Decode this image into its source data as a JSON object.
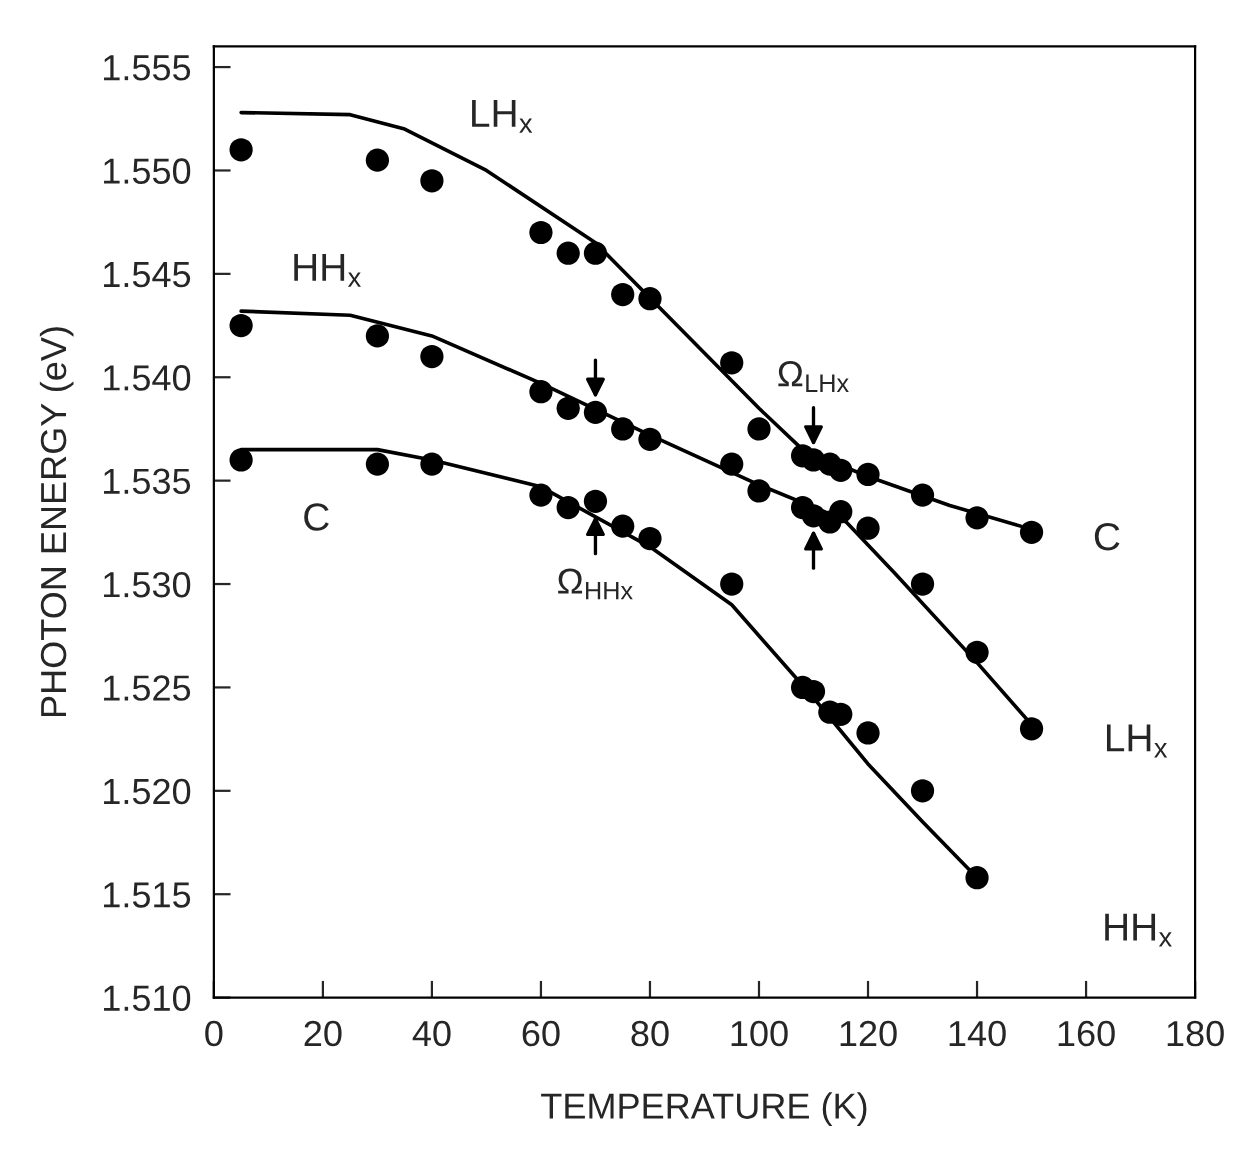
{
  "chart_data": {
    "type": "scatter",
    "xlabel": "TEMPERATURE (K)",
    "ylabel": "PHOTON ENERGY (eV)",
    "xlim": [
      0,
      180
    ],
    "xticks": [
      0,
      20,
      40,
      60,
      80,
      100,
      120,
      140,
      160,
      180
    ],
    "ylim": [
      1.51,
      1.556
    ],
    "yticks": [
      {
        "value": 1.51,
        "label": "1.510"
      },
      {
        "value": 1.515,
        "label": "1.515"
      },
      {
        "value": 1.52,
        "label": "1.520"
      },
      {
        "value": 1.525,
        "label": "1.525"
      },
      {
        "value": 1.53,
        "label": "1.530"
      },
      {
        "value": 1.535,
        "label": "1.535"
      },
      {
        "value": 1.54,
        "label": "1.540"
      },
      {
        "value": 1.545,
        "label": "1.545"
      },
      {
        "value": 1.55,
        "label": "1.550"
      },
      {
        "value": 1.555,
        "label": "1.555"
      }
    ],
    "grid": false,
    "legend": false,
    "series": [
      {
        "marker": "circle",
        "color": "#000000",
        "x": [
          5,
          30,
          40,
          60,
          65,
          70,
          75,
          80,
          95,
          100,
          108,
          110,
          113,
          115,
          120,
          130,
          140,
          150
        ],
        "values": [
          1.551,
          1.5505,
          1.5495,
          1.547,
          1.546,
          1.546,
          1.544,
          1.5438,
          1.5407,
          1.5375,
          1.5362,
          1.536,
          1.5358,
          1.5355,
          1.5353,
          1.5343,
          1.5332,
          1.5325
        ]
      },
      {
        "marker": "circle",
        "color": "#000000",
        "x": [
          5,
          30,
          40,
          60,
          65,
          70,
          75,
          80,
          95,
          100,
          108,
          110,
          113,
          115,
          120,
          130,
          140,
          150
        ],
        "values": [
          1.5425,
          1.542,
          1.541,
          1.5393,
          1.5385,
          1.5383,
          1.5375,
          1.537,
          1.5358,
          1.5345,
          1.5337,
          1.5333,
          1.533,
          1.5335,
          1.5327,
          1.53,
          1.5267,
          1.523
        ]
      },
      {
        "marker": "circle",
        "color": "#000000",
        "x": [
          5,
          30,
          40,
          60,
          65,
          70,
          75,
          80,
          95,
          108,
          110,
          113,
          115,
          120,
          130,
          140
        ],
        "values": [
          1.536,
          1.5358,
          1.5358,
          1.5343,
          1.5337,
          1.534,
          1.5328,
          1.5322,
          1.53,
          1.525,
          1.5248,
          1.5238,
          1.5237,
          1.5228,
          1.52,
          1.5158
        ]
      },
      {
        "type": "line",
        "color": "#000000",
        "line_style": "solid",
        "x": [
          5,
          25,
          35,
          50,
          70,
          85,
          100,
          108,
          120,
          135,
          148
        ],
        "values": [
          1.5528,
          1.5527,
          1.552,
          1.55,
          1.5465,
          1.5425,
          1.5385,
          1.5365,
          1.5352,
          1.5338,
          1.5328
        ]
      },
      {
        "type": "line",
        "color": "#000000",
        "line_style": "solid",
        "x": [
          5,
          25,
          40,
          60,
          80,
          100,
          112,
          116,
          125,
          140,
          150
        ],
        "values": [
          1.5432,
          1.543,
          1.542,
          1.5397,
          1.5372,
          1.5348,
          1.5335,
          1.533,
          1.5305,
          1.5262,
          1.5232
        ]
      },
      {
        "type": "line",
        "color": "#000000",
        "line_style": "solid",
        "x": [
          5,
          30,
          40,
          60,
          80,
          95,
          110,
          120,
          130,
          140
        ],
        "values": [
          1.5365,
          1.5365,
          1.536,
          1.5347,
          1.5318,
          1.529,
          1.5245,
          1.5213,
          1.5185,
          1.5158
        ]
      }
    ],
    "annotations": [
      "LH$_{x}$",
      "HH$_{x}$",
      "C",
      "C",
      "LH$_{x}$",
      "HH$_{x}$",
      {
        "text": "Ω$_{HHx}$",
        "x": 70,
        "y": 1.534
      },
      {
        "text": "Ω$_{LHx}$",
        "x": 110,
        "y": 1.536
      }
    ]
  }
}
